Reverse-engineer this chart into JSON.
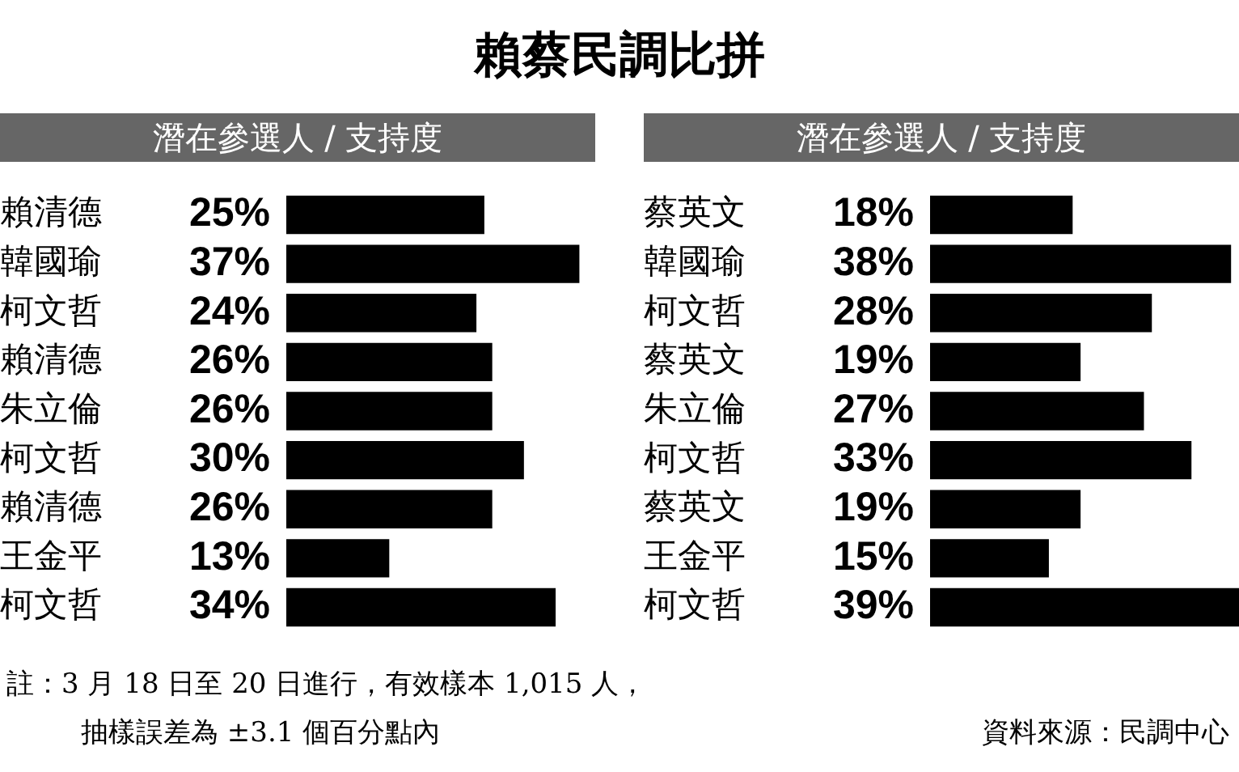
{
  "chart_data": [
    {
      "type": "bar",
      "orientation": "horizontal",
      "title": "賴蔡民調比拼",
      "subtitle": "潛在參選人 / 支持度",
      "categories": [
        "賴清德",
        "韓國瑜",
        "柯文哲",
        "賴清德",
        "朱立倫",
        "柯文哲",
        "賴清德",
        "王金平",
        "柯文哲"
      ],
      "values": [
        25,
        37,
        24,
        26,
        26,
        30,
        26,
        13,
        34
      ],
      "value_labels": [
        "25%",
        "37%",
        "24%",
        "26%",
        "26%",
        "30%",
        "26%",
        "13%",
        "34%"
      ],
      "color": "#000000",
      "annotations": [
        "註：3 月 18 日至 20 日進行，有效樣本 1,015 人，",
        "抽樣誤差為 ±3.1 個百分點內"
      ]
    },
    {
      "type": "bar",
      "orientation": "horizontal",
      "subtitle": "潛在參選人 / 支持度",
      "categories": [
        "蔡英文",
        "韓國瑜",
        "柯文哲",
        "蔡英文",
        "朱立倫",
        "柯文哲",
        "蔡英文",
        "王金平",
        "柯文哲"
      ],
      "values": [
        18,
        38,
        28,
        19,
        27,
        33,
        19,
        15,
        39
      ],
      "value_labels": [
        "18%",
        "38%",
        "28%",
        "19%",
        "27%",
        "33%",
        "19%",
        "15%",
        "39%"
      ],
      "color": "#000000",
      "annotations": [
        "資料來源：民調中心"
      ]
    }
  ]
}
